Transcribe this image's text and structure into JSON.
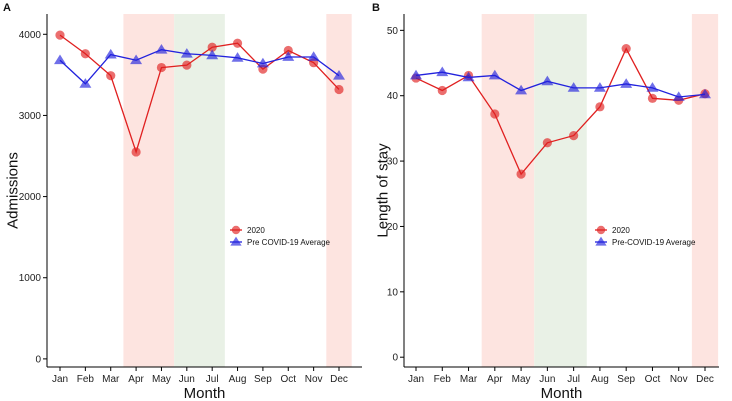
{
  "chart_data": [
    {
      "type": "line",
      "panel": "A",
      "title": "",
      "xlabel": "Month",
      "ylabel": "Admissions",
      "ylim": [
        -100,
        4250
      ],
      "yticks": [
        0,
        1000,
        2000,
        3000,
        4000
      ],
      "categories": [
        "Jan",
        "Feb",
        "Mar",
        "Apr",
        "May",
        "Jun",
        "Jul",
        "Aug",
        "Sep",
        "Oct",
        "Nov",
        "Dec"
      ],
      "series": [
        {
          "name": "2020",
          "marker": "circle",
          "color": "#e02020",
          "values": [
            3990,
            3760,
            3490,
            2550,
            3590,
            3620,
            3840,
            3890,
            3570,
            3800,
            3650,
            3320
          ]
        },
        {
          "name": "Pre COVID-19 Average",
          "marker": "triangle",
          "color": "#2222dd",
          "values": [
            3680,
            3390,
            3750,
            3680,
            3810,
            3760,
            3740,
            3710,
            3640,
            3720,
            3720,
            3490
          ]
        }
      ],
      "shaded_regions": [
        {
          "from": "Apr",
          "to": "May",
          "color": "#fde4e0"
        },
        {
          "from": "Jun",
          "to": "Jul",
          "color": "#e9f1e6"
        },
        {
          "from": "Dec",
          "to": "Dec",
          "color": "#fde4e0"
        }
      ],
      "legend": {
        "position": "center-right",
        "entries": [
          "2020",
          "Pre COVID-19 Average"
        ]
      },
      "grid": false
    },
    {
      "type": "line",
      "panel": "B",
      "title": "",
      "xlabel": "Month",
      "ylabel": "Length of stay",
      "ylim": [
        -1.5,
        52.5
      ],
      "yticks": [
        0,
        10,
        20,
        30,
        40,
        50
      ],
      "categories": [
        "Jan",
        "Feb",
        "Mar",
        "Apr",
        "May",
        "Jun",
        "Jul",
        "Aug",
        "Sep",
        "Oct",
        "Nov",
        "Dec"
      ],
      "series": [
        {
          "name": "2020",
          "marker": "circle",
          "color": "#e02020",
          "values": [
            42.7,
            40.8,
            43.1,
            37.2,
            28.0,
            32.8,
            33.9,
            38.3,
            47.2,
            39.6,
            39.3,
            40.3
          ]
        },
        {
          "name": "Pre-COVID-19 Average",
          "marker": "triangle",
          "color": "#2222dd",
          "values": [
            43.1,
            43.6,
            42.8,
            43.1,
            40.8,
            42.2,
            41.2,
            41.2,
            41.8,
            41.2,
            39.8,
            40.2
          ]
        }
      ],
      "shaded_regions": [
        {
          "from": "Apr",
          "to": "May",
          "color": "#fde4e0"
        },
        {
          "from": "Jun",
          "to": "Jul",
          "color": "#e9f1e6"
        },
        {
          "from": "Dec",
          "to": "Dec",
          "color": "#fde4e0"
        }
      ],
      "legend": {
        "position": "center-right",
        "entries": [
          "2020",
          "Pre-COVID-19 Average"
        ]
      },
      "grid": false
    }
  ]
}
